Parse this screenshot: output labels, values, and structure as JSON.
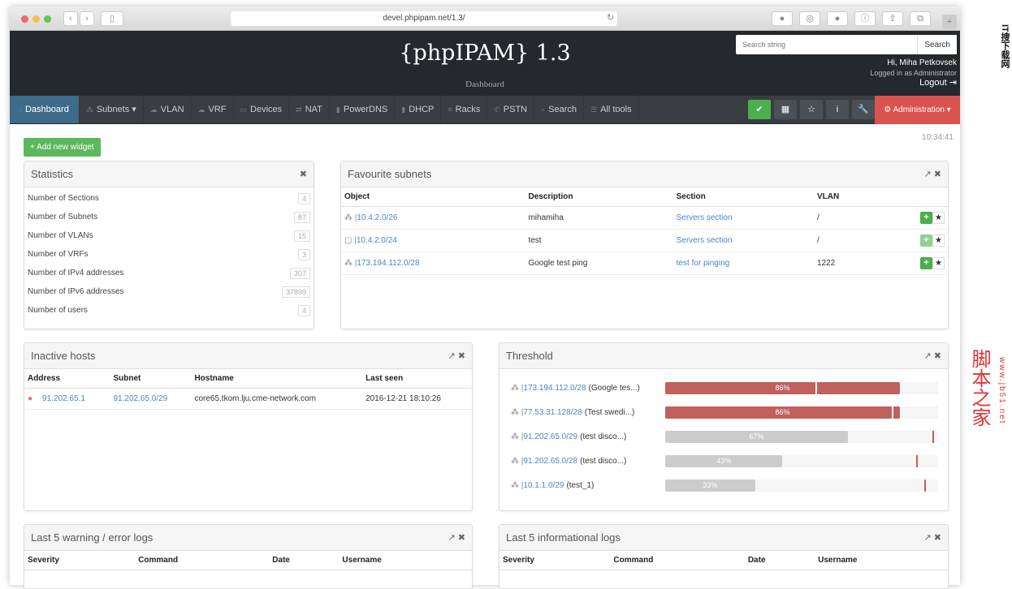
{
  "browser": {
    "url": "devel.phpipam.net/1.3/"
  },
  "header": {
    "title": "{phpIPAM} 1.3",
    "subtitle": "Dashboard",
    "search_placeholder": "Search string",
    "search_button": "Search",
    "greeting": "Hi, Miha Petkovsek",
    "logged_in": "Logged in as Administrator",
    "logout": "Logout"
  },
  "nav": {
    "items": [
      {
        "label": "Dashboard",
        "icon": "chevron-right"
      },
      {
        "label": "Subnets ▾",
        "icon": "sitemap"
      },
      {
        "label": "VLAN",
        "icon": "cloud"
      },
      {
        "label": "VRF",
        "icon": "cloud"
      },
      {
        "label": "Devices",
        "icon": "desktop"
      },
      {
        "label": "NAT",
        "icon": "exchange"
      },
      {
        "label": "PowerDNS",
        "icon": "database"
      },
      {
        "label": "DHCP",
        "icon": "database"
      },
      {
        "label": "Racks",
        "icon": "bars"
      },
      {
        "label": "PSTN",
        "icon": "phone"
      },
      {
        "label": "Search",
        "icon": "search"
      },
      {
        "label": "All tools",
        "icon": "list"
      }
    ],
    "admin": "Administration ▾"
  },
  "time": "10:34:41",
  "add_widget": "+ Add new widget",
  "statistics": {
    "title": "Statistics",
    "rows": [
      {
        "label": "Number of Sections",
        "value": "4"
      },
      {
        "label": "Number of Subnets",
        "value": "87"
      },
      {
        "label": "Number of VLANs",
        "value": "15"
      },
      {
        "label": "Number of VRFs",
        "value": "3"
      },
      {
        "label": "Number of IPv4 addresses",
        "value": "307"
      },
      {
        "label": "Number of IPv6 addresses",
        "value": "37899"
      },
      {
        "label": "Number of users",
        "value": "4"
      }
    ]
  },
  "favourites": {
    "title": "Favourite subnets",
    "columns": [
      "Object",
      "Description",
      "Section",
      "VLAN"
    ],
    "rows": [
      {
        "object": "10.4.2.0/26",
        "description": "mihamiha",
        "section": "Servers section",
        "vlan": "/",
        "icon": "sitemap"
      },
      {
        "object": "10.4.2.0/24",
        "description": "test",
        "section": "Servers section",
        "vlan": "/",
        "icon": "folder"
      },
      {
        "object": "173.194.112.0/28",
        "description": "Google test ping",
        "section": "test for pinging",
        "vlan": "1222",
        "icon": "sitemap"
      }
    ]
  },
  "inactive": {
    "title": "Inactive hosts",
    "columns": [
      "Address",
      "Subnet",
      "Hostname",
      "Last seen"
    ],
    "rows": [
      {
        "address": "91.202.65.1",
        "subnet": "91.202.65.0/29",
        "hostname": "core65.tkom.lju.cme-network.com",
        "last_seen": "2016-12-21 18:10:26"
      }
    ]
  },
  "threshold": {
    "title": "Threshold",
    "rows": [
      {
        "subnet": "173.194.112.0/28",
        "desc": "(Google tes...)",
        "usage": 86,
        "label": "86%",
        "threshold": 55,
        "alert": true
      },
      {
        "subnet": "77.53.31.128/28",
        "desc": "(Test swedi...)",
        "usage": 86,
        "label": "86%",
        "threshold": 83,
        "alert": true
      },
      {
        "subnet": "91.202.65.0/29",
        "desc": "(test disco...)",
        "usage": 67,
        "label": "67%",
        "threshold": 98,
        "alert": false
      },
      {
        "subnet": "91.202.65.0/28",
        "desc": "(test disco...)",
        "usage": 43,
        "label": "43%",
        "threshold": 92,
        "alert": false
      },
      {
        "subnet": "10.1.1.0/29",
        "desc": "(test_1)",
        "usage": 33,
        "label": "33%",
        "threshold": 95,
        "alert": false
      }
    ]
  },
  "warnlogs": {
    "title": "Last 5 warning / error logs",
    "columns": [
      "Severity",
      "Command",
      "Date",
      "Username"
    ]
  },
  "infologs": {
    "title": "Last 5 informational logs",
    "columns": [
      "Severity",
      "Command",
      "Date",
      "Username"
    ]
  },
  "watermark": {
    "text": "脚本之家",
    "url": "www.jb51.net",
    "corner": "IT搜下载网"
  },
  "colors": {
    "header": "#25282c",
    "nav": "#3a3e43",
    "active": "#3d6c8a",
    "admin": "#d9534f",
    "success": "#5cb85c",
    "danger": "#c0615d",
    "link": "#4a86c5"
  }
}
